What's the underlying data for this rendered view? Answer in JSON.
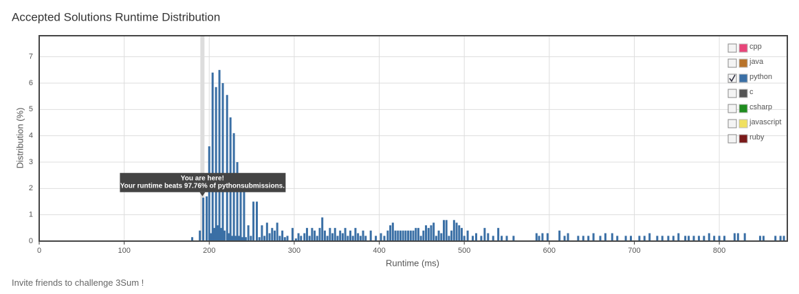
{
  "title": "Accepted Solutions Runtime Distribution",
  "chart_data": {
    "type": "bar",
    "x_label": "Runtime (ms)",
    "y_label": "Distribution (%)",
    "xlim": [
      0,
      880
    ],
    "ylim": [
      0,
      7.8
    ],
    "xticks": [
      0,
      100,
      200,
      300,
      400,
      500,
      600,
      700,
      800
    ],
    "yticks": [
      0,
      1,
      2,
      3,
      4,
      5,
      6,
      7
    ],
    "grid": true,
    "legend_position": "top-right",
    "x": [
      180,
      189,
      193,
      197,
      200,
      202,
      204,
      206,
      208,
      210,
      212,
      214,
      216,
      218,
      221,
      223,
      225,
      227,
      229,
      231,
      233,
      235,
      237,
      239,
      241,
      243,
      246,
      249,
      252,
      256,
      259,
      262,
      265,
      268,
      271,
      274,
      277,
      280,
      283,
      286,
      289,
      292,
      298,
      302,
      305,
      308,
      312,
      315,
      318,
      321,
      324,
      327,
      330,
      333,
      336,
      339,
      342,
      345,
      348,
      351,
      354,
      357,
      360,
      363,
      366,
      369,
      372,
      375,
      378,
      381,
      384,
      390,
      396,
      402,
      406,
      410,
      413,
      416,
      419,
      422,
      425,
      428,
      431,
      434,
      437,
      440,
      443,
      446,
      449,
      452,
      455,
      458,
      461,
      464,
      467,
      470,
      473,
      476,
      479,
      482,
      485,
      488,
      491,
      494,
      497,
      500,
      504,
      510,
      514,
      520,
      524,
      528,
      534,
      540,
      544,
      550,
      558,
      585,
      588,
      592,
      598,
      612,
      618,
      622,
      634,
      640,
      646,
      652,
      660,
      666,
      674,
      680,
      690,
      696,
      706,
      712,
      718,
      727,
      733,
      740,
      746,
      752,
      760,
      764,
      770,
      776,
      782,
      788,
      794,
      800,
      806,
      818,
      822,
      830,
      848,
      852,
      866,
      872,
      876
    ],
    "series": [
      {
        "name": "python",
        "color": "#3a6fa5",
        "values": [
          0.15,
          0.4,
          1.65,
          1.7,
          3.6,
          0.3,
          6.4,
          0.5,
          5.85,
          0.6,
          6.5,
          0.5,
          6.0,
          0.4,
          5.55,
          0.3,
          4.7,
          0.2,
          4.1,
          0.2,
          3.0,
          0.2,
          2.5,
          0.15,
          1.9,
          0.15,
          0.6,
          0.2,
          1.5,
          1.5,
          0.15,
          0.6,
          0.2,
          0.7,
          0.3,
          0.5,
          0.4,
          0.7,
          0.2,
          0.4,
          0.15,
          0.2,
          0.5,
          0.1,
          0.3,
          0.2,
          0.3,
          0.5,
          0.2,
          0.5,
          0.4,
          0.2,
          0.5,
          0.9,
          0.4,
          0.2,
          0.5,
          0.3,
          0.5,
          0.2,
          0.4,
          0.3,
          0.5,
          0.2,
          0.4,
          0.2,
          0.5,
          0.3,
          0.2,
          0.4,
          0.2,
          0.4,
          0.2,
          0.3,
          0.2,
          0.4,
          0.6,
          0.7,
          0.4,
          0.4,
          0.4,
          0.4,
          0.4,
          0.4,
          0.4,
          0.4,
          0.5,
          0.5,
          0.2,
          0.4,
          0.6,
          0.5,
          0.6,
          0.7,
          0.2,
          0.4,
          0.3,
          0.8,
          0.8,
          0.2,
          0.4,
          0.8,
          0.7,
          0.6,
          0.5,
          0.2,
          0.4,
          0.2,
          0.3,
          0.2,
          0.5,
          0.3,
          0.2,
          0.5,
          0.2,
          0.2,
          0.2,
          0.3,
          0.2,
          0.3,
          0.3,
          0.4,
          0.2,
          0.3,
          0.2,
          0.2,
          0.2,
          0.3,
          0.2,
          0.3,
          0.3,
          0.2,
          0.2,
          0.2,
          0.2,
          0.2,
          0.3,
          0.2,
          0.2,
          0.2,
          0.2,
          0.3,
          0.2,
          0.2,
          0.2,
          0.2,
          0.2,
          0.3,
          0.2,
          0.2,
          0.2,
          0.3,
          0.3,
          0.3,
          0.2,
          0.2,
          0.2,
          0.2,
          0.2
        ]
      }
    ],
    "legend": [
      {
        "name": "cpp",
        "color": "#e8457a",
        "checked": false
      },
      {
        "name": "java",
        "color": "#b8732a",
        "checked": false
      },
      {
        "name": "python",
        "color": "#3a6fa5",
        "checked": true
      },
      {
        "name": "c",
        "color": "#555555",
        "checked": false
      },
      {
        "name": "csharp",
        "color": "#1e8c1e",
        "checked": false
      },
      {
        "name": "javascript",
        "color": "#f0e060",
        "checked": false
      },
      {
        "name": "ruby",
        "color": "#7a1a1a",
        "checked": false
      }
    ],
    "highlight_x": 192,
    "highlight_value": 1.65,
    "annotation": {
      "line1": "You are here!",
      "line2": "Your runtime beats 97.76% of pythonsubmissions."
    }
  },
  "footer": {
    "text": "Invite friends to challenge",
    "link": "3Sum",
    "suffix": "!"
  }
}
